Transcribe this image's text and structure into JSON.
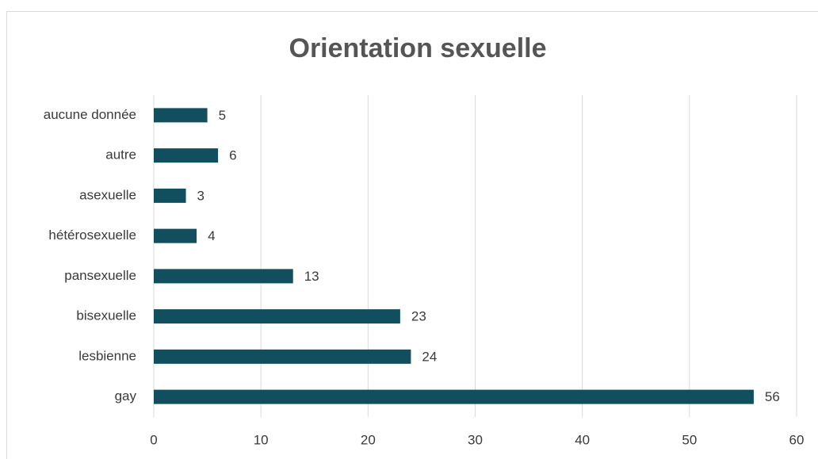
{
  "chart_data": {
    "type": "barh",
    "title": "Orientation sexuelle",
    "categories": [
      "aucune donnée",
      "autre",
      "asexuelle",
      "hétérosexuelle",
      "pansexuelle",
      "bisexuelle",
      "lesbienne",
      "gay"
    ],
    "values": [
      5,
      6,
      3,
      4,
      13,
      23,
      24,
      56
    ],
    "color": "#114f5f",
    "xlim": [
      0,
      60
    ],
    "xticks": [
      0,
      10,
      20,
      30,
      40,
      50,
      60
    ],
    "grid": true
  }
}
